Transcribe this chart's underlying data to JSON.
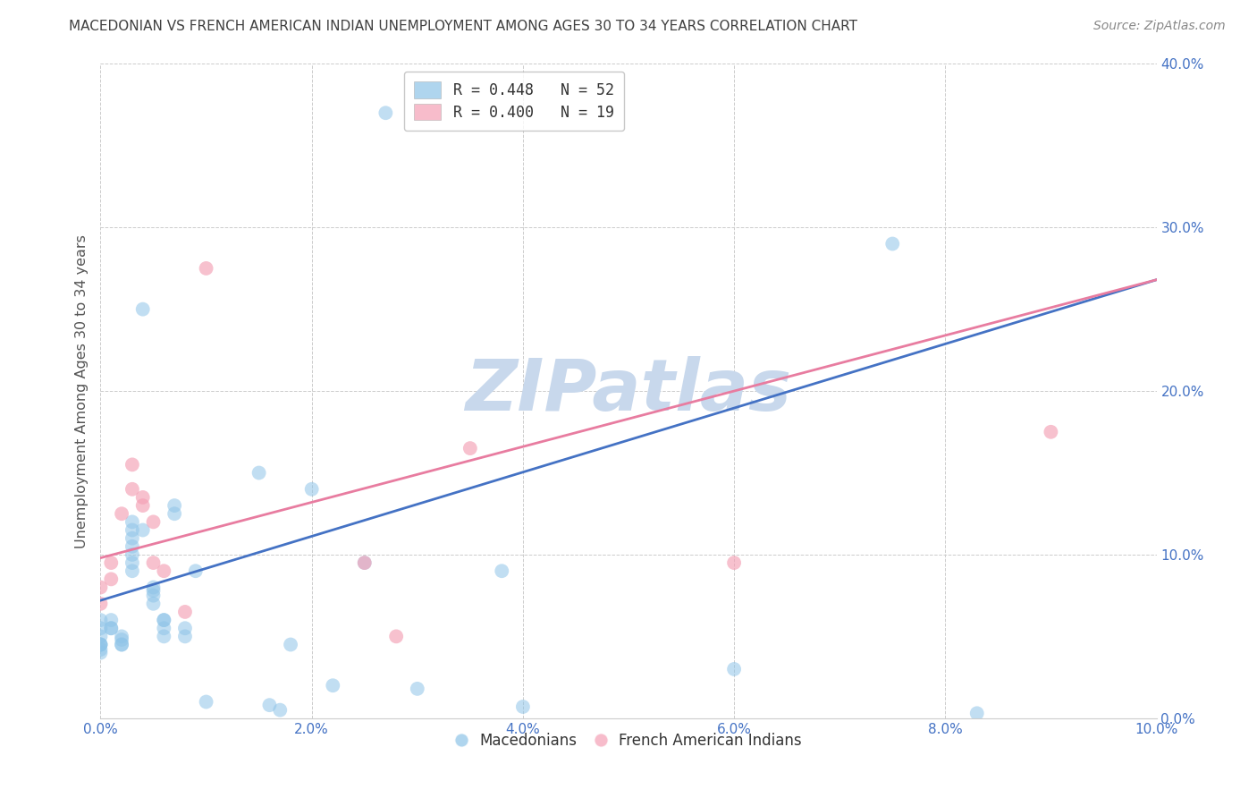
{
  "title": "MACEDONIAN VS FRENCH AMERICAN INDIAN UNEMPLOYMENT AMONG AGES 30 TO 34 YEARS CORRELATION CHART",
  "source": "Source: ZipAtlas.com",
  "ylabel": "Unemployment Among Ages 30 to 34 years",
  "xlim": [
    0,
    0.1
  ],
  "ylim": [
    0,
    0.4
  ],
  "watermark_zip": "ZIP",
  "watermark_atlas": "atlas",
  "legend_entries": [
    {
      "label": "R = 0.448   N = 52",
      "color": "#8ec4e8"
    },
    {
      "label": "R = 0.400   N = 19",
      "color": "#f4a0b5"
    }
  ],
  "macedonians_x": [
    0.0,
    0.0,
    0.0,
    0.0,
    0.0,
    0.0,
    0.0,
    0.0,
    0.001,
    0.001,
    0.001,
    0.002,
    0.002,
    0.002,
    0.002,
    0.003,
    0.003,
    0.003,
    0.003,
    0.003,
    0.003,
    0.003,
    0.004,
    0.004,
    0.005,
    0.005,
    0.005,
    0.005,
    0.006,
    0.006,
    0.006,
    0.006,
    0.007,
    0.007,
    0.008,
    0.008,
    0.009,
    0.01,
    0.015,
    0.016,
    0.017,
    0.018,
    0.02,
    0.022,
    0.025,
    0.027,
    0.03,
    0.038,
    0.04,
    0.06,
    0.075,
    0.083
  ],
  "macedonians_y": [
    0.06,
    0.055,
    0.05,
    0.045,
    0.045,
    0.045,
    0.042,
    0.04,
    0.06,
    0.055,
    0.055,
    0.05,
    0.048,
    0.045,
    0.045,
    0.12,
    0.115,
    0.11,
    0.105,
    0.1,
    0.095,
    0.09,
    0.25,
    0.115,
    0.08,
    0.078,
    0.075,
    0.07,
    0.06,
    0.055,
    0.06,
    0.05,
    0.13,
    0.125,
    0.055,
    0.05,
    0.09,
    0.01,
    0.15,
    0.008,
    0.005,
    0.045,
    0.14,
    0.02,
    0.095,
    0.37,
    0.018,
    0.09,
    0.007,
    0.03,
    0.29,
    0.003
  ],
  "french_x": [
    0.0,
    0.0,
    0.001,
    0.001,
    0.002,
    0.003,
    0.003,
    0.004,
    0.004,
    0.005,
    0.005,
    0.006,
    0.008,
    0.01,
    0.025,
    0.028,
    0.035,
    0.06,
    0.09
  ],
  "french_y": [
    0.08,
    0.07,
    0.095,
    0.085,
    0.125,
    0.155,
    0.14,
    0.135,
    0.13,
    0.12,
    0.095,
    0.09,
    0.065,
    0.275,
    0.095,
    0.05,
    0.165,
    0.095,
    0.175
  ],
  "blue_line_x": [
    0.0,
    0.1
  ],
  "blue_line_y": [
    0.072,
    0.268
  ],
  "pink_line_x": [
    0.0,
    0.1
  ],
  "pink_line_y": [
    0.098,
    0.268
  ],
  "dot_color_blue": "#8ec4e8",
  "dot_color_pink": "#f4a0b5",
  "line_color_blue": "#4472c4",
  "line_color_pink": "#e87ca0",
  "title_color": "#404040",
  "axis_tick_color": "#4472c4",
  "grid_color": "#cccccc",
  "background_color": "#ffffff",
  "watermark_color_zip": "#c8d8ec",
  "watermark_color_atlas": "#c8d8ec",
  "ylabel_color": "#555555",
  "x_ticks": [
    0.0,
    0.02,
    0.04,
    0.06,
    0.08,
    0.1
  ],
  "y_ticks": [
    0.0,
    0.1,
    0.2,
    0.3,
    0.4
  ]
}
